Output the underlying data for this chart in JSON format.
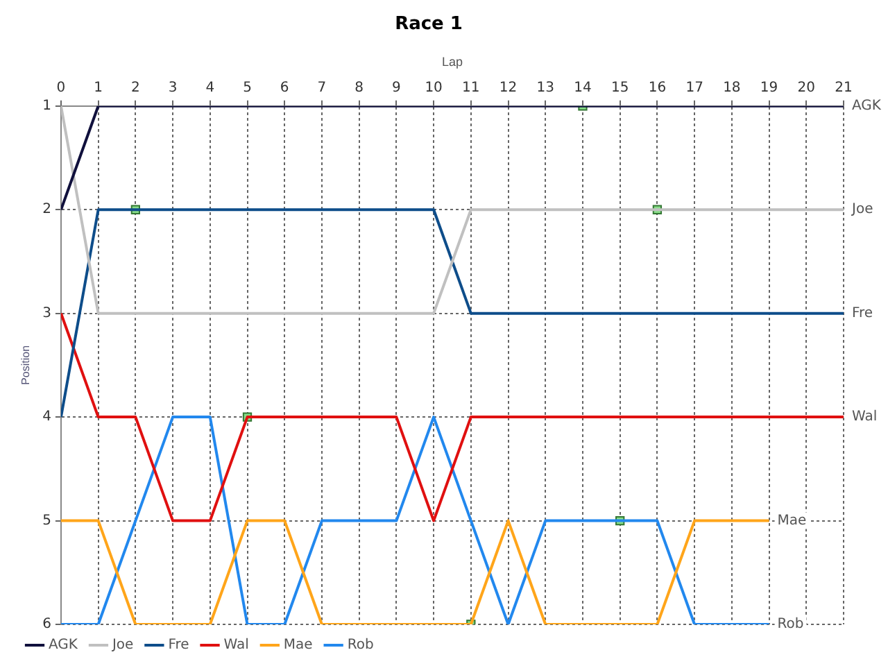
{
  "chart_data": {
    "type": "line",
    "title": "Race 1",
    "xlabel": "Lap",
    "ylabel": "Position",
    "x": [
      0,
      1,
      2,
      3,
      4,
      5,
      6,
      7,
      8,
      9,
      10,
      11,
      12,
      13,
      14,
      15,
      16,
      17,
      18,
      19,
      20,
      21
    ],
    "xlim": [
      0,
      21
    ],
    "xticks": [
      0,
      1,
      2,
      3,
      4,
      5,
      6,
      7,
      8,
      9,
      10,
      11,
      12,
      13,
      14,
      15,
      16,
      17,
      18,
      19,
      20,
      21
    ],
    "ylim": [
      6,
      1
    ],
    "yticks": [
      1,
      2,
      3,
      4,
      5,
      6
    ],
    "grid": true,
    "legend": "bottom left",
    "marker": "none",
    "line_style": "solid",
    "series": [
      {
        "name": "AGK",
        "color": "#10103c",
        "values": [
          2,
          1,
          1,
          1,
          1,
          1,
          1,
          1,
          1,
          1,
          1,
          1,
          1,
          1,
          1,
          1,
          1,
          1,
          1,
          1,
          1,
          1
        ]
      },
      {
        "name": "Joe",
        "color": "#c0c0c0",
        "values": [
          1,
          3,
          3,
          3,
          3,
          3,
          3,
          3,
          3,
          3,
          3,
          2,
          2,
          2,
          2,
          2,
          2,
          2,
          2,
          2,
          2,
          2
        ]
      },
      {
        "name": "Fre",
        "color": "#0e4d8a",
        "values": [
          4,
          2,
          2,
          2,
          2,
          2,
          2,
          2,
          2,
          2,
          2,
          3,
          3,
          3,
          3,
          3,
          3,
          3,
          3,
          3,
          3,
          3
        ]
      },
      {
        "name": "Wal",
        "color": "#e01010",
        "values": [
          3,
          4,
          4,
          5,
          5,
          4,
          4,
          4,
          4,
          4,
          5,
          4,
          4,
          4,
          4,
          4,
          4,
          4,
          4,
          4,
          4,
          4
        ]
      },
      {
        "name": "Mae",
        "color": "#ffa51a",
        "x": [
          0,
          1,
          2,
          3,
          4,
          5,
          6,
          7,
          8,
          9,
          10,
          11,
          12,
          13,
          14,
          15,
          16,
          17,
          18,
          19
        ],
        "values": [
          5,
          5,
          6,
          6,
          6,
          5,
          5,
          6,
          6,
          6,
          6,
          6,
          5,
          6,
          6,
          6,
          6,
          5,
          5,
          5
        ]
      },
      {
        "name": "Rob",
        "color": "#2288ee",
        "x": [
          0,
          1,
          2,
          3,
          4,
          5,
          6,
          7,
          8,
          9,
          10,
          11,
          12,
          13,
          14,
          15,
          16,
          17,
          18,
          19
        ],
        "values": [
          6,
          6,
          5,
          4,
          4,
          6,
          6,
          5,
          5,
          5,
          4,
          5,
          6,
          5,
          5,
          5,
          5,
          6,
          6,
          6
        ]
      },
      {
        "type": "scatter",
        "marker": "square",
        "color": "#88dd88",
        "x": [
          2,
          5,
          11,
          14,
          15,
          16
        ],
        "values": [
          2,
          4,
          6,
          1,
          5,
          2
        ]
      }
    ]
  }
}
